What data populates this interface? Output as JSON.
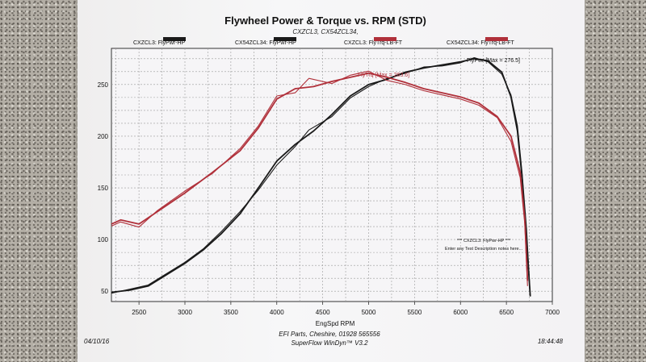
{
  "chart_data": {
    "type": "line",
    "title": "Flywheel Power & Torque vs. RPM (STD)",
    "subtitle": "CXZCL3, CX54ZCL34,",
    "xlabel": "EngSpd RPM",
    "ylabel": "",
    "xlim": [
      2200,
      7000
    ],
    "ylim": [
      40,
      285
    ],
    "xticks": [
      2500,
      3000,
      3500,
      4000,
      4500,
      5000,
      5500,
      6000,
      6500,
      7000
    ],
    "yticks": [
      50,
      100,
      150,
      200,
      250
    ],
    "grid": true,
    "series": [
      {
        "name": "CXZCL3: FlyPwr-HP",
        "color": "#1a1a1a",
        "x": [
          2200,
          2400,
          2600,
          2800,
          3000,
          3200,
          3400,
          3600,
          3800,
          3900,
          4000,
          4200,
          4400,
          4600,
          4800,
          5000,
          5200,
          5400,
          5600,
          5800,
          6000,
          6150,
          6300,
          6450,
          6550,
          6620,
          6670,
          6720,
          6760
        ],
        "y": [
          49,
          51,
          55,
          66,
          77,
          90,
          106,
          125,
          150,
          163,
          176,
          192,
          205,
          221,
          239,
          250,
          255,
          262,
          266,
          269,
          272,
          275,
          273,
          262,
          238,
          205,
          160,
          100,
          45
        ]
      },
      {
        "name": "CX54ZCL34: FlyPwr-HP",
        "color": "#1a1a1a",
        "x": [
          2200,
          2400,
          2600,
          2800,
          3000,
          3200,
          3400,
          3600,
          3800,
          3900,
          4000,
          4200,
          4350,
          4600,
          4800,
          5000,
          5200,
          5400,
          5600,
          5800,
          6000,
          6150,
          6300,
          6450,
          6550,
          6620,
          6670,
          6720,
          6760
        ],
        "y": [
          48,
          52,
          56,
          67,
          78,
          91,
          108,
          127,
          148,
          160,
          172,
          190,
          206,
          219,
          237,
          248,
          256,
          261,
          267,
          268,
          271,
          276,
          272,
          260,
          240,
          210,
          165,
          110,
          45
        ]
      },
      {
        "name": "CXZCL3: FlyTrq-LB-FT",
        "color": "#b0303a",
        "x": [
          2200,
          2300,
          2500,
          2700,
          3000,
          3300,
          3600,
          3800,
          4000,
          4200,
          4400,
          4600,
          4800,
          5000,
          5200,
          5400,
          5600,
          5800,
          6000,
          6200,
          6400,
          6550,
          6650,
          6700,
          6730
        ],
        "y": [
          115,
          119,
          115,
          127,
          145,
          165,
          186,
          208,
          236,
          246,
          248,
          253,
          257,
          261,
          257,
          252,
          246,
          242,
          238,
          232,
          219,
          200,
          165,
          120,
          60
        ]
      },
      {
        "name": "CX54ZCL34: FlyTrq-LB-FT",
        "color": "#b0303a",
        "x": [
          2200,
          2300,
          2500,
          2700,
          3000,
          3300,
          3600,
          3800,
          4000,
          4200,
          4350,
          4600,
          4800,
          5000,
          5200,
          5400,
          5600,
          5800,
          6000,
          6200,
          6400,
          6550,
          6650,
          6700,
          6730
        ],
        "y": [
          113,
          117,
          112,
          128,
          147,
          164,
          188,
          210,
          239,
          242,
          256,
          251,
          259,
          263,
          254,
          250,
          244,
          240,
          236,
          230,
          218,
          195,
          160,
          115,
          55
        ]
      }
    ],
    "annotations": {
      "torque_max": "FlyTrq [Max = 263.6]",
      "power_max": "FlyPwr [Max = 276.5]",
      "test_note_1": "*** CXZCL3: FlyPwr-HP ***",
      "test_note_2": "Enter any Test Description notes here..."
    }
  },
  "footer": {
    "company": "EFI Parts, Cheshire, 01928 565556",
    "software": "SuperFlow WinDyn™ V3.2",
    "date": "04/10/16",
    "time": "18:44:48"
  }
}
